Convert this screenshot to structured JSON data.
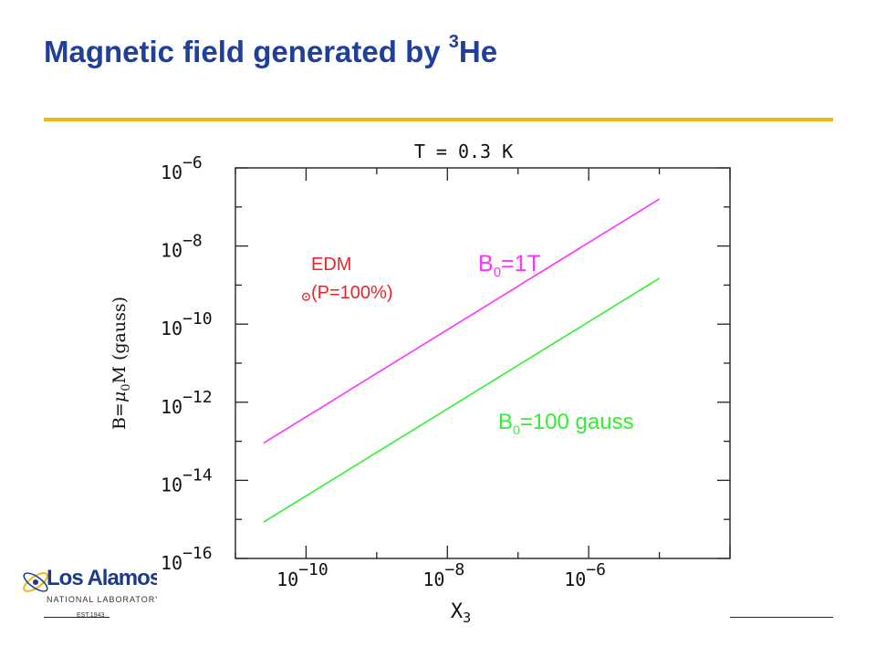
{
  "slide": {
    "title_main": "Magnetic field generated by ",
    "title_sup": "3",
    "title_end": "He"
  },
  "logo": {
    "name": "Los Alamos",
    "subtitle": "NATIONAL LABORATORY",
    "est": "EST.1943"
  },
  "colors": {
    "title": "#1f3f9a",
    "rule": "#f0b912",
    "series_1T": "#ff33ff",
    "series_100g": "#33ee33",
    "edm": "#e8262a"
  },
  "chart_data": {
    "type": "line",
    "title": "T = 0.3 K",
    "xlabel_main": "X",
    "xlabel_sub": "3",
    "ylabel_pre": "B=",
    "ylabel_mu": "μ",
    "ylabel_sub": "0",
    "ylabel_post": "M  (gauss)",
    "x_scale": "log",
    "y_scale": "log",
    "xlim": [
      1e-11,
      0.0001
    ],
    "ylim": [
      1e-16,
      1e-06
    ],
    "x_ticks": [
      {
        "value": 1e-10,
        "base": "10",
        "exp": "−10"
      },
      {
        "value": 1e-08,
        "base": "10",
        "exp": "−8"
      },
      {
        "value": 1e-06,
        "base": "10",
        "exp": "−6"
      }
    ],
    "y_ticks": [
      {
        "value": 1e-16,
        "base": "10",
        "exp": "−16"
      },
      {
        "value": 1e-14,
        "base": "10",
        "exp": "−14"
      },
      {
        "value": 1e-12,
        "base": "10",
        "exp": "−12"
      },
      {
        "value": 1e-10,
        "base": "10",
        "exp": "−10"
      },
      {
        "value": 1e-08,
        "base": "10",
        "exp": "−8"
      },
      {
        "value": 1e-06,
        "base": "10",
        "exp": "−6"
      }
    ],
    "legend": "none",
    "grid": false,
    "series": [
      {
        "key": "b1t",
        "label_pre": "B",
        "label_sub": "0",
        "label_post": "=1T",
        "color": "#ff33ff",
        "points": [
          [
            2.5e-11,
            9e-14
          ],
          [
            1e-05,
            1.6e-07
          ]
        ]
      },
      {
        "key": "b100g",
        "label_pre": "B",
        "label_sub": "0",
        "label_post": "=100 gauss",
        "color": "#33ee33",
        "points": [
          [
            2.5e-11,
            8.5e-16
          ],
          [
            1e-05,
            1.5e-09
          ]
        ]
      }
    ],
    "annotations": [
      {
        "key": "edm",
        "line1": "EDM",
        "line2": "(P=100%)",
        "color": "#e8262a",
        "x": 1e-10,
        "y": 5e-10,
        "marker": "circle-dot"
      }
    ]
  }
}
